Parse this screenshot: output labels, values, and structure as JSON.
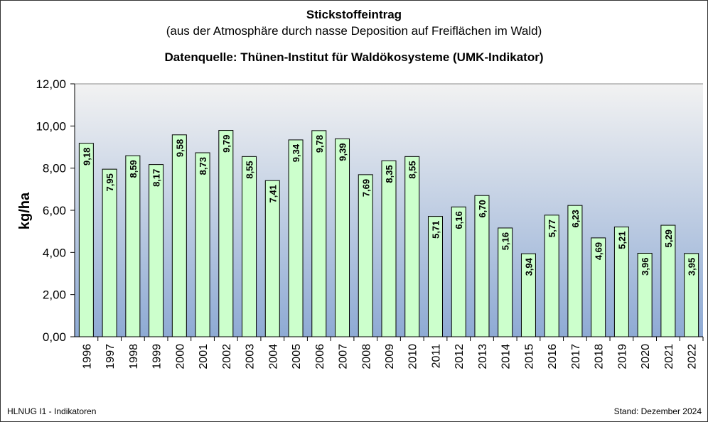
{
  "footer": {
    "left": "HLNUG I1  - Indikatoren",
    "right": "Stand:  Dezember 2024"
  },
  "colors": {
    "bar_fill": "#ccffcc",
    "bar_border": "#000000",
    "plot_bg_top": "#f2f2f2",
    "plot_bg_bottom": "#8eaad4"
  },
  "chart_data": {
    "type": "bar",
    "title": "Stickstoffeintrag",
    "subtitle": "(aus der Atmosphäre durch nasse Deposition auf Freiflächen im Wald)",
    "source": "Datenquelle:  Thünen-Institut für Waldökosysteme (UMK-Indikator)",
    "xlabel": "",
    "ylabel": "kg/ha",
    "ylim": [
      0,
      12
    ],
    "yticks": [
      "0,00",
      "2,00",
      "4,00",
      "6,00",
      "8,00",
      "10,00",
      "12,00"
    ],
    "grid": false,
    "categories": [
      "1996",
      "1997",
      "1998",
      "1999",
      "2000",
      "2001",
      "2002",
      "2003",
      "2004",
      "2005",
      "2006",
      "2007",
      "2008",
      "2009",
      "2010",
      "2011",
      "2012",
      "2013",
      "2014",
      "2015",
      "2016",
      "2017",
      "2018",
      "2019",
      "2020",
      "2021",
      "2022"
    ],
    "values": [
      9.18,
      7.95,
      8.59,
      8.17,
      9.58,
      8.73,
      9.79,
      8.55,
      7.41,
      9.34,
      9.78,
      9.39,
      7.69,
      8.35,
      8.55,
      5.71,
      6.16,
      6.7,
      5.16,
      3.94,
      5.77,
      6.23,
      4.69,
      5.21,
      3.96,
      5.29,
      3.95
    ],
    "data_labels": [
      "9,18",
      "7,95",
      "8,59",
      "8,17",
      "9,58",
      "8,73",
      "9,79",
      "8,55",
      "7,41",
      "9,34",
      "9,78",
      "9,39",
      "7,69",
      "8,35",
      "8,55",
      "5,71",
      "6,16",
      "6,70",
      "5,16",
      "3,94",
      "5,77",
      "6,23",
      "4,69",
      "5,21",
      "3,96",
      "5,29",
      "3,95"
    ]
  }
}
